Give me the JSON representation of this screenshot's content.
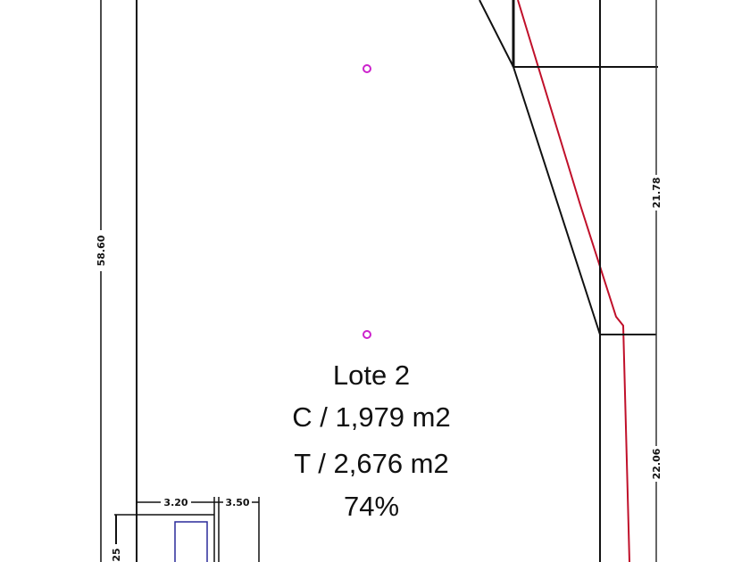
{
  "lot": {
    "name": "Lote 2",
    "built_area": "C / 1,979 m2",
    "total_area": "T / 2,676 m2",
    "ratio": "74%"
  },
  "dimensions": {
    "left_height": "58.60",
    "right_upper": "21.78",
    "right_lower": "22.06",
    "bottom_a": "3.20",
    "bottom_b": "3.50",
    "bottom_left": "25"
  },
  "colors": {
    "line": "#111111",
    "boundary_red": "#c0102a",
    "point_marker": "#cc22cc",
    "rect_blue": "#2a2a9a"
  }
}
